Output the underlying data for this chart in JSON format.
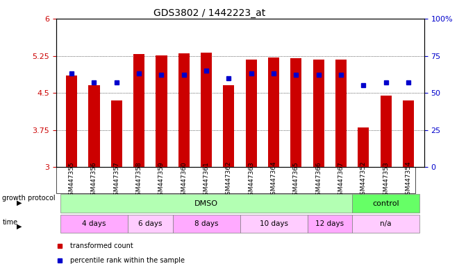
{
  "title": "GDS3802 / 1442223_at",
  "samples": [
    "GSM447355",
    "GSM447356",
    "GSM447357",
    "GSM447358",
    "GSM447359",
    "GSM447360",
    "GSM447361",
    "GSM447362",
    "GSM447363",
    "GSM447364",
    "GSM447365",
    "GSM447366",
    "GSM447367",
    "GSM447352",
    "GSM447353",
    "GSM447354"
  ],
  "transformed_count": [
    4.85,
    4.65,
    4.35,
    5.28,
    5.26,
    5.3,
    5.32,
    4.65,
    5.18,
    5.22,
    5.2,
    5.18,
    5.18,
    3.8,
    4.45,
    4.35
  ],
  "percentile_rank": [
    63,
    57,
    57,
    63,
    62,
    62,
    65,
    60,
    63,
    63,
    62,
    62,
    62,
    55,
    57,
    57
  ],
  "ylim_left": [
    3,
    6
  ],
  "ylim_right": [
    0,
    100
  ],
  "yticks_left": [
    3,
    3.75,
    4.5,
    5.25,
    6
  ],
  "ytick_labels_left": [
    "3",
    "3.75",
    "4.5",
    "5.25",
    "6"
  ],
  "yticks_right": [
    0,
    25,
    50,
    75,
    100
  ],
  "ytick_labels_right": [
    "0",
    "25",
    "50",
    "75",
    "100%"
  ],
  "bar_color": "#cc0000",
  "dot_color": "#0000cc",
  "growth_protocol_groups": [
    {
      "label": "DMSO",
      "start": 0,
      "end": 13,
      "color": "#b3ffb3"
    },
    {
      "label": "control",
      "start": 13,
      "end": 16,
      "color": "#66ff66"
    }
  ],
  "time_groups": [
    {
      "label": "4 days",
      "start": 0,
      "end": 3,
      "color": "#ffaaff"
    },
    {
      "label": "6 days",
      "start": 3,
      "end": 5,
      "color": "#ffccff"
    },
    {
      "label": "8 days",
      "start": 5,
      "end": 8,
      "color": "#ffaaff"
    },
    {
      "label": "10 days",
      "start": 8,
      "end": 11,
      "color": "#ffccff"
    },
    {
      "label": "12 days",
      "start": 11,
      "end": 13,
      "color": "#ffaaff"
    },
    {
      "label": "n/a",
      "start": 13,
      "end": 16,
      "color": "#ffccff"
    }
  ],
  "label_color_left": "#cc0000",
  "label_color_right": "#0000cc",
  "bg_color": "#ffffff",
  "tick_area_color": "#dddddd",
  "growth_protocol_label": "growth protocol",
  "time_label": "time"
}
